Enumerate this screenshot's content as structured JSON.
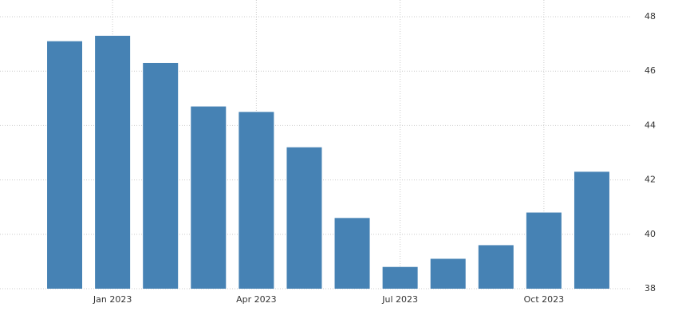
{
  "chart_data": {
    "type": "bar",
    "categories": [
      null,
      "Jan 2023",
      null,
      null,
      "Apr 2023",
      null,
      null,
      "Jul 2023",
      null,
      null,
      "Oct 2023",
      null
    ],
    "values": [
      47.1,
      47.3,
      46.3,
      44.7,
      44.5,
      43.2,
      40.6,
      38.8,
      39.1,
      39.6,
      40.8,
      42.3
    ],
    "color": "#4682b4",
    "ylim": [
      38,
      48
    ],
    "yticks": [
      38,
      40,
      42,
      44,
      46,
      48
    ],
    "grid": true
  }
}
